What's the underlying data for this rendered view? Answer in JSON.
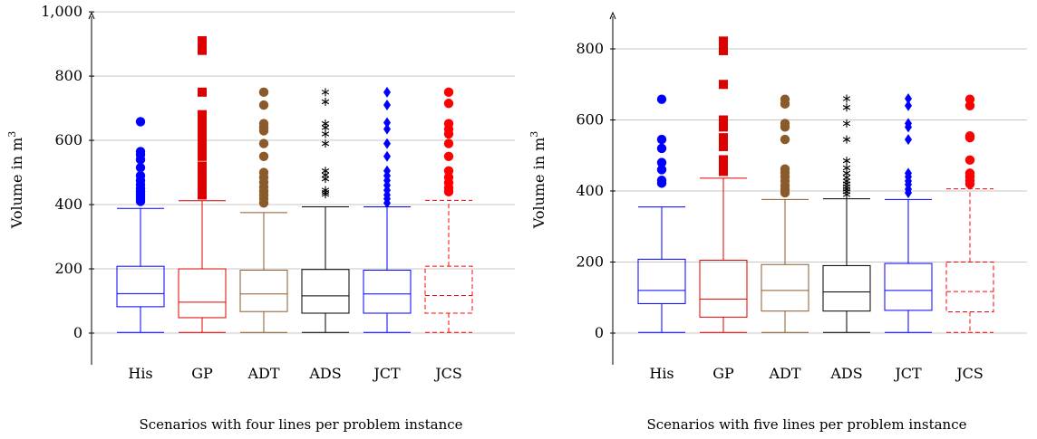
{
  "chart_data": [
    {
      "type": "box",
      "caption": "Scenarios with four lines per problem instance",
      "ylabel_text": "Volume in m",
      "ylabel_sup": "3",
      "ylim": [
        -90,
        1000
      ],
      "yticks": [
        0,
        200,
        400,
        600,
        800,
        1000
      ],
      "ytick_labels": [
        "0",
        "200",
        "400",
        "600",
        "800",
        "1,000"
      ],
      "grid": true,
      "categories": [
        "His",
        "GP",
        "ADT",
        "ADS",
        "JCT",
        "JCS"
      ],
      "series": [
        {
          "category": "His",
          "color": "#0000ff",
          "marker": "circle",
          "dashed": false,
          "whisker_low": 2,
          "q1": 82,
          "median": 123,
          "q3": 208,
          "whisker_high": 388,
          "outliers": [
            410,
            418,
            425,
            432,
            440,
            450,
            462,
            475,
            490,
            515,
            540,
            555,
            565,
            658
          ]
        },
        {
          "category": "GP",
          "color": "#dd0000",
          "marker": "square",
          "dashed": false,
          "whisker_low": 2,
          "q1": 48,
          "median": 96,
          "q3": 200,
          "whisker_high": 412,
          "outliers": [
            430,
            440,
            452,
            465,
            478,
            490,
            505,
            520,
            550,
            570,
            590,
            600,
            625,
            640,
            660,
            680,
            750,
            880,
            890,
            900,
            910
          ]
        },
        {
          "category": "ADT",
          "color": "#8b5a2b",
          "marker": "circle",
          "dashed": false,
          "whisker_low": 2,
          "q1": 67,
          "median": 122,
          "q3": 196,
          "whisker_high": 375,
          "outliers": [
            405,
            418,
            430,
            442,
            455,
            470,
            485,
            500,
            550,
            590,
            630,
            640,
            652,
            710,
            750
          ]
        },
        {
          "category": "ADS",
          "color": "#000000",
          "marker": "star",
          "dashed": false,
          "whisker_low": 2,
          "q1": 62,
          "median": 116,
          "q3": 198,
          "whisker_high": 393,
          "outliers": [
            432,
            438,
            445,
            480,
            492,
            505,
            590,
            620,
            640,
            652,
            720,
            750
          ]
        },
        {
          "category": "JCT",
          "color": "#0000ff",
          "marker": "diamond",
          "dashed": false,
          "whisker_low": 2,
          "q1": 62,
          "median": 122,
          "q3": 196,
          "whisker_high": 393,
          "outliers": [
            405,
            418,
            430,
            445,
            460,
            475,
            490,
            505,
            550,
            590,
            635,
            655,
            710,
            750
          ]
        },
        {
          "category": "JCS",
          "color": "#ff0000",
          "marker": "circle",
          "dashed": true,
          "whisker_low": 2,
          "q1": 62,
          "median": 117,
          "q3": 208,
          "whisker_high": 413,
          "outliers": [
            440,
            452,
            468,
            485,
            505,
            550,
            590,
            620,
            635,
            652,
            715,
            750
          ]
        }
      ]
    },
    {
      "type": "box",
      "caption": "Scenarios with five lines per problem instance",
      "ylabel_text": "Volume in m",
      "ylabel_sup": "3",
      "ylim": [
        -90,
        905
      ],
      "yticks": [
        0,
        200,
        400,
        600,
        800
      ],
      "ytick_labels": [
        "0",
        "200",
        "400",
        "600",
        "800"
      ],
      "grid": true,
      "categories": [
        "His",
        "GP",
        "ADT",
        "ADS",
        "JCT",
        "JCS"
      ],
      "series": [
        {
          "category": "His",
          "color": "#0000ff",
          "marker": "circle",
          "dashed": false,
          "whisker_low": 2,
          "q1": 83,
          "median": 120,
          "q3": 208,
          "whisker_high": 355,
          "outliers": [
            422,
            430,
            460,
            480,
            520,
            545,
            658
          ]
        },
        {
          "category": "GP",
          "color": "#dd0000",
          "marker": "square",
          "dashed": false,
          "whisker_low": 2,
          "q1": 45,
          "median": 96,
          "q3": 205,
          "whisker_high": 436,
          "outliers": [
            455,
            465,
            475,
            488,
            525,
            550,
            580,
            590,
            600,
            700,
            795,
            810,
            822
          ]
        },
        {
          "category": "ADT",
          "color": "#8b5a2b",
          "marker": "circle",
          "dashed": false,
          "whisker_low": 2,
          "q1": 62,
          "median": 120,
          "q3": 193,
          "whisker_high": 376,
          "outliers": [
            395,
            405,
            415,
            428,
            440,
            452,
            462,
            545,
            580,
            590,
            645,
            658
          ]
        },
        {
          "category": "ADS",
          "color": "#000000",
          "marker": "star",
          "dashed": false,
          "whisker_low": 2,
          "q1": 62,
          "median": 116,
          "q3": 190,
          "whisker_high": 378,
          "outliers": [
            390,
            398,
            405,
            412,
            420,
            428,
            438,
            450,
            465,
            485,
            545,
            590,
            635,
            660
          ]
        },
        {
          "category": "JCT",
          "color": "#0000ff",
          "marker": "diamond",
          "dashed": false,
          "whisker_low": 2,
          "q1": 64,
          "median": 120,
          "q3": 196,
          "whisker_high": 376,
          "outliers": [
            395,
            405,
            418,
            428,
            440,
            450,
            545,
            580,
            590,
            640,
            660
          ]
        },
        {
          "category": "JCS",
          "color": "#ff0000",
          "marker": "circle",
          "dashed": true,
          "whisker_low": 2,
          "q1": 60,
          "median": 117,
          "q3": 200,
          "whisker_high": 406,
          "outliers": [
            420,
            430,
            440,
            450,
            487,
            550,
            555,
            640,
            658
          ]
        }
      ]
    }
  ]
}
